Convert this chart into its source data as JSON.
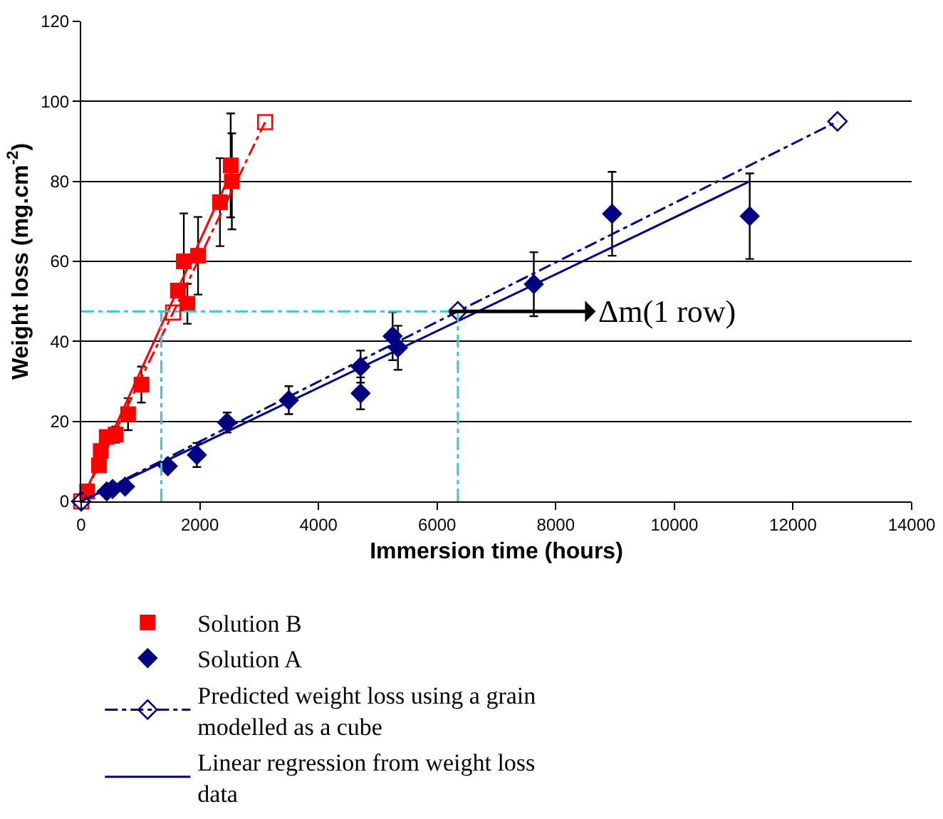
{
  "chart_data": {
    "type": "scatter",
    "xlabel": "Immersion time (hours)",
    "ylabel": "Weight loss (mg.cm$^{-2}$)",
    "xlim": [
      0,
      14000
    ],
    "xticks": [
      0,
      2000,
      4000,
      6000,
      8000,
      10000,
      12000,
      14000
    ],
    "ylim": [
      0,
      120
    ],
    "yticks": [
      0,
      20,
      40,
      60,
      80,
      100,
      120
    ],
    "grid": "y",
    "legend": "bottom left",
    "series": [
      {
        "name": "Solution B",
        "marker": "square",
        "color": "#ff0000",
        "x": [
          100,
          300,
          330,
          430,
          580,
          790,
          1015,
          1630,
          1730,
          1790,
          1970,
          2340,
          2520,
          2540
        ],
        "values": [
          2.5,
          9.0,
          12.6,
          16.1,
          16.7,
          21.8,
          29.2,
          52.7,
          60,
          49.4,
          61.4,
          74.8,
          84,
          80
        ],
        "errors": [
          null,
          null,
          null,
          null,
          2,
          4,
          4.5,
          null,
          12,
          5,
          9.7,
          11,
          13,
          12
        ]
      },
      {
        "name": "Solution A",
        "marker": "diamond",
        "color": "#000080",
        "x": [
          430,
          530,
          740,
          1460,
          1950,
          2460,
          3500,
          4710,
          4710,
          5250,
          5340,
          7630,
          8950,
          11270
        ],
        "values": [
          2.5,
          3.1,
          3.7,
          8.8,
          11.6,
          19.7,
          25.3,
          27,
          33.7,
          41.3,
          38.4,
          54.3,
          71.9,
          71.3
        ],
        "errors": [
          null,
          null,
          null,
          null,
          3,
          2.5,
          3.5,
          4,
          4,
          6,
          5.5,
          8,
          10.5,
          10.7
        ]
      },
      {
        "type": "line",
        "line_style": "dashdot",
        "marker": "square",
        "color": "#ff0000",
        "x": [
          0,
          1550,
          3100
        ],
        "values": [
          0,
          47.2,
          94.8
        ]
      },
      {
        "name": "Predicted weight loss using a grain modelled as a cube",
        "type": "line",
        "line_style": "dashdot",
        "marker": "diamond",
        "color": "#000080",
        "x": [
          0,
          6350,
          12750
        ],
        "values": [
          0,
          47.5,
          95
        ]
      },
      {
        "type": "line",
        "line_style": "solid",
        "marker": "none",
        "color": "#ff0000",
        "x": [
          0,
          2550
        ],
        "values": [
          0,
          83
        ]
      },
      {
        "name": "Linear regression from weight loss data",
        "type": "line",
        "line_style": "solid",
        "marker": "none",
        "color": "#000080",
        "x": [
          0,
          11270
        ],
        "values": [
          0,
          80
        ]
      }
    ],
    "ref_lines": [
      {
        "axis": "y",
        "value": 47.5,
        "color": "#33cccc",
        "line_style": "dashdot"
      },
      {
        "axis": "x",
        "value": 1350,
        "color": "#33cccc",
        "line_style": "dashdot"
      },
      {
        "axis": "x",
        "value": 6350,
        "color": "#33cccc",
        "line_style": "dashdot"
      }
    ],
    "annotations": [
      {
        "text": "Δm(1 row)",
        "x": 6200,
        "y": 47.5
      }
    ]
  }
}
